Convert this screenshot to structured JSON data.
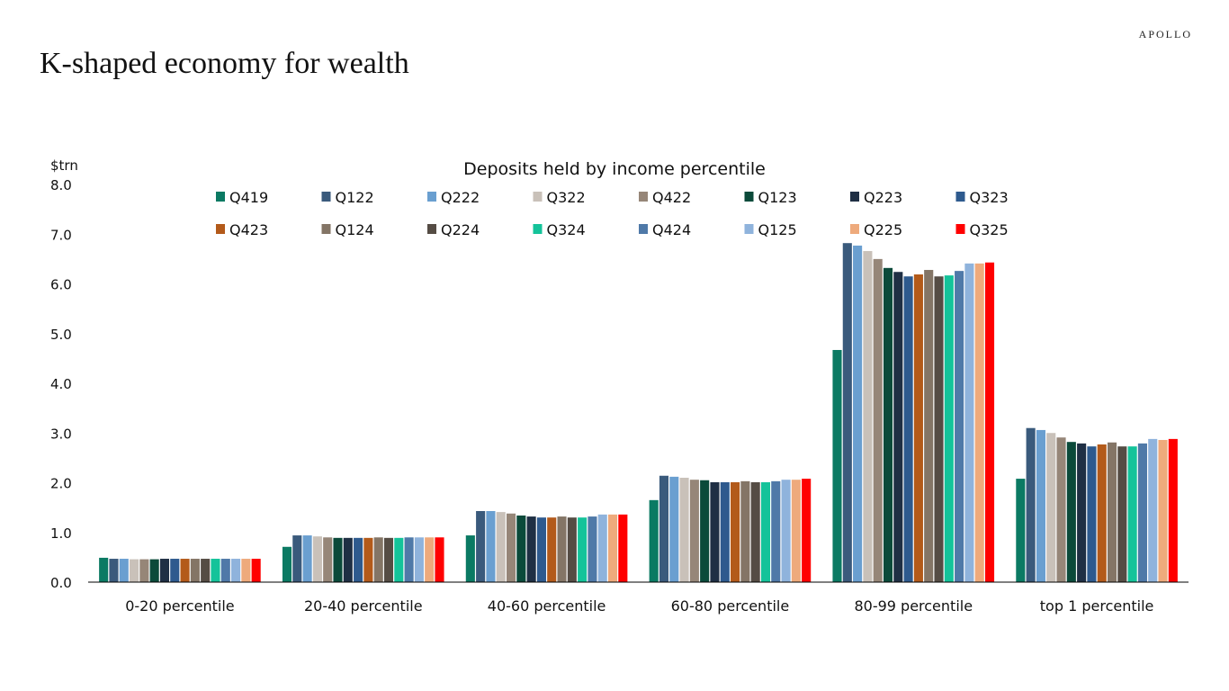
{
  "brand": "APOLLO",
  "page_title": "K-shaped economy for wealth",
  "chart_data": {
    "type": "bar",
    "title": "Deposits held by income percentile",
    "ylabel": "$trn",
    "xlabel": "",
    "ylim": [
      0,
      8
    ],
    "yticks": [
      "0.0",
      "1.0",
      "2.0",
      "3.0",
      "4.0",
      "5.0",
      "6.0",
      "7.0",
      "8.0"
    ],
    "grid": false,
    "legend": "top",
    "categories": [
      "0-20 percentile",
      "20-40 percentile",
      "40-60 percentile",
      "60-80 percentile",
      "80-99 percentile",
      "top 1 percentile"
    ],
    "series": [
      {
        "name": "Q419",
        "color": "#0b7a63",
        "values": [
          0.49,
          0.71,
          0.94,
          1.65,
          4.67,
          2.08
        ]
      },
      {
        "name": "Q122",
        "color": "#3a5a7c",
        "values": [
          0.47,
          0.94,
          1.43,
          2.14,
          6.82,
          3.1
        ]
      },
      {
        "name": "Q222",
        "color": "#6a9fd0",
        "values": [
          0.47,
          0.94,
          1.43,
          2.12,
          6.77,
          3.06
        ]
      },
      {
        "name": "Q322",
        "color": "#c9c1b9",
        "values": [
          0.46,
          0.92,
          1.41,
          2.1,
          6.66,
          3.0
        ]
      },
      {
        "name": "Q422",
        "color": "#968678",
        "values": [
          0.46,
          0.9,
          1.38,
          2.06,
          6.5,
          2.91
        ]
      },
      {
        "name": "Q123",
        "color": "#0b4a3a",
        "values": [
          0.46,
          0.89,
          1.34,
          2.05,
          6.32,
          2.82
        ]
      },
      {
        "name": "Q223",
        "color": "#1f2f44",
        "values": [
          0.47,
          0.89,
          1.32,
          2.01,
          6.24,
          2.79
        ]
      },
      {
        "name": "Q323",
        "color": "#2e5a8e",
        "values": [
          0.47,
          0.89,
          1.3,
          2.01,
          6.15,
          2.73
        ]
      },
      {
        "name": "Q423",
        "color": "#b35a1a",
        "values": [
          0.47,
          0.89,
          1.3,
          2.01,
          6.19,
          2.77
        ]
      },
      {
        "name": "Q124",
        "color": "#847566",
        "values": [
          0.47,
          0.9,
          1.32,
          2.03,
          6.28,
          2.81
        ]
      },
      {
        "name": "Q224",
        "color": "#554c44",
        "values": [
          0.47,
          0.89,
          1.3,
          2.01,
          6.15,
          2.73
        ]
      },
      {
        "name": "Q324",
        "color": "#14c39a",
        "values": [
          0.47,
          0.89,
          1.3,
          2.01,
          6.17,
          2.73
        ]
      },
      {
        "name": "Q424",
        "color": "#4f79a8",
        "values": [
          0.47,
          0.9,
          1.32,
          2.03,
          6.26,
          2.79
        ]
      },
      {
        "name": "Q125",
        "color": "#8fb3dc",
        "values": [
          0.47,
          0.9,
          1.36,
          2.06,
          6.41,
          2.88
        ]
      },
      {
        "name": "Q225",
        "color": "#eeaa7c",
        "values": [
          0.47,
          0.9,
          1.36,
          2.06,
          6.41,
          2.86
        ]
      },
      {
        "name": "Q325",
        "color": "#ff0000",
        "values": [
          0.47,
          0.9,
          1.36,
          2.08,
          6.43,
          2.88
        ]
      }
    ]
  }
}
